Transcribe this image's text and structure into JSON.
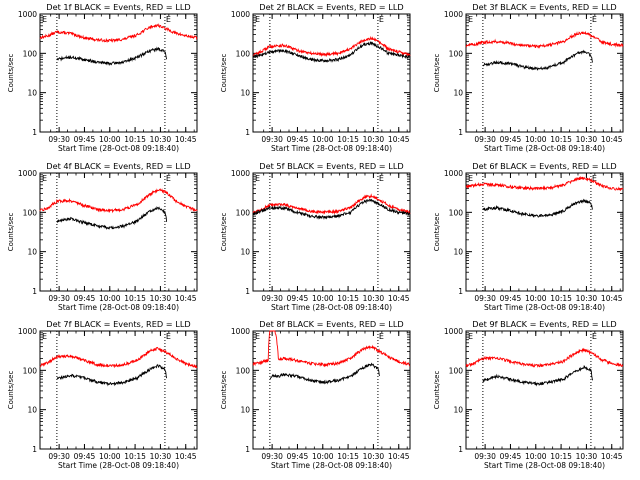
{
  "figure": {
    "x_tick_labels": [
      "09:30",
      "09:45",
      "10:00",
      "10:15",
      "10:30",
      "10:45"
    ],
    "y_tick_labels": [
      "1",
      "10",
      "100",
      "1000"
    ],
    "ylabel": "Counts/sec",
    "xlabel": "Start Time (28-Oct-08 09:18:40)",
    "marker_labels": [
      "E",
      "E"
    ],
    "colors": {
      "events": "#000000",
      "lld": "#ff0000",
      "axes": "#000000",
      "background": "#ffffff"
    }
  },
  "chart_data": [
    {
      "type": "line",
      "title": "Det 1f BLACK = Events, RED = LLD",
      "xlabel": "Start Time (28-Oct-08 09:18:40)",
      "ylabel": "Counts/sec",
      "x_unit": "minutes after 09:18:40",
      "xlim": [
        0,
        93
      ],
      "ylim": [
        1,
        1000
      ],
      "y_scale": "log",
      "marker_lines_x": [
        10,
        74
      ],
      "series": [
        {
          "name": "Events",
          "color": "#000000",
          "x": [
            10,
            18,
            26,
            34,
            42,
            50,
            58,
            66,
            70,
            74,
            75
          ],
          "y": [
            70,
            80,
            70,
            60,
            55,
            60,
            80,
            120,
            130,
            110,
            70
          ]
        },
        {
          "name": "LLD",
          "color": "#ff0000",
          "x": [
            0,
            5,
            10,
            18,
            26,
            34,
            42,
            50,
            58,
            66,
            70,
            74,
            80,
            86,
            93
          ],
          "y": [
            250,
            280,
            350,
            320,
            250,
            220,
            210,
            230,
            300,
            480,
            520,
            430,
            330,
            280,
            250
          ]
        }
      ]
    },
    {
      "type": "line",
      "title": "Det 2f BLACK = Events, RED = LLD",
      "xlabel": "Start Time (28-Oct-08 09:18:40)",
      "ylabel": "Counts/sec",
      "x_unit": "minutes after 09:18:40",
      "xlim": [
        0,
        93
      ],
      "ylim": [
        1,
        1000
      ],
      "y_scale": "log",
      "marker_lines_x": [
        10,
        74
      ],
      "series": [
        {
          "name": "Events",
          "color": "#000000",
          "x": [
            0,
            5,
            10,
            18,
            26,
            34,
            42,
            50,
            58,
            66,
            70,
            74,
            80,
            86,
            93
          ],
          "y": [
            80,
            90,
            110,
            120,
            90,
            70,
            65,
            70,
            90,
            170,
            180,
            150,
            100,
            90,
            80
          ]
        },
        {
          "name": "LLD",
          "color": "#ff0000",
          "x": [
            0,
            5,
            10,
            18,
            26,
            34,
            42,
            50,
            58,
            66,
            70,
            74,
            80,
            86,
            93
          ],
          "y": [
            90,
            110,
            150,
            160,
            120,
            100,
            95,
            100,
            130,
            220,
            240,
            200,
            130,
            110,
            90
          ]
        }
      ]
    },
    {
      "type": "line",
      "title": "Det 3f BLACK = Events, RED = LLD",
      "xlabel": "Start Time (28-Oct-08 09:18:40)",
      "ylabel": "Counts/sec",
      "x_unit": "minutes after 09:18:40",
      "xlim": [
        0,
        93
      ],
      "ylim": [
        1,
        1000
      ],
      "y_scale": "log",
      "marker_lines_x": [
        10,
        74
      ],
      "series": [
        {
          "name": "Events",
          "color": "#000000",
          "x": [
            10,
            18,
            26,
            34,
            42,
            50,
            58,
            66,
            70,
            74,
            75
          ],
          "y": [
            50,
            60,
            55,
            45,
            40,
            45,
            60,
            100,
            110,
            90,
            60
          ]
        },
        {
          "name": "LLD",
          "color": "#ff0000",
          "x": [
            0,
            5,
            10,
            18,
            26,
            34,
            42,
            50,
            58,
            66,
            70,
            74,
            80,
            86,
            93
          ],
          "y": [
            160,
            170,
            190,
            200,
            180,
            160,
            150,
            165,
            200,
            320,
            340,
            280,
            200,
            170,
            160
          ]
        }
      ]
    },
    {
      "type": "line",
      "title": "Det 4f BLACK = Events, RED = LLD",
      "xlabel": "Start Time (28-Oct-08 09:18:40)",
      "ylabel": "Counts/sec",
      "x_unit": "minutes after 09:18:40",
      "xlim": [
        0,
        93
      ],
      "ylim": [
        1,
        1000
      ],
      "y_scale": "log",
      "marker_lines_x": [
        10,
        74
      ],
      "series": [
        {
          "name": "Events",
          "color": "#000000",
          "x": [
            10,
            18,
            26,
            34,
            42,
            50,
            58,
            66,
            70,
            74,
            75
          ],
          "y": [
            60,
            70,
            55,
            45,
            40,
            45,
            60,
            110,
            130,
            100,
            60
          ]
        },
        {
          "name": "LLD",
          "color": "#ff0000",
          "x": [
            0,
            5,
            10,
            18,
            26,
            34,
            42,
            50,
            58,
            66,
            70,
            74,
            80,
            86,
            93
          ],
          "y": [
            110,
            130,
            190,
            200,
            150,
            120,
            110,
            120,
            160,
            300,
            380,
            330,
            200,
            140,
            110
          ]
        }
      ]
    },
    {
      "type": "line",
      "title": "Det 5f BLACK = Events, RED = LLD",
      "xlabel": "Start Time (28-Oct-08 09:18:40)",
      "ylabel": "Counts/sec",
      "x_unit": "minutes after 09:18:40",
      "xlim": [
        0,
        93
      ],
      "ylim": [
        1,
        1000
      ],
      "y_scale": "log",
      "marker_lines_x": [
        10,
        74
      ],
      "series": [
        {
          "name": "Events",
          "color": "#000000",
          "x": [
            0,
            5,
            10,
            18,
            26,
            34,
            42,
            50,
            58,
            66,
            70,
            74,
            80,
            86,
            93
          ],
          "y": [
            90,
            110,
            130,
            130,
            100,
            80,
            75,
            80,
            100,
            190,
            200,
            170,
            120,
            100,
            90
          ]
        },
        {
          "name": "LLD",
          "color": "#ff0000",
          "x": [
            0,
            5,
            10,
            18,
            26,
            34,
            42,
            50,
            58,
            66,
            70,
            74,
            80,
            86,
            93
          ],
          "y": [
            100,
            120,
            150,
            160,
            130,
            105,
            100,
            105,
            130,
            240,
            260,
            220,
            150,
            120,
            100
          ]
        }
      ]
    },
    {
      "type": "line",
      "title": "Det 6f BLACK = Events, RED = LLD",
      "xlabel": "Start Time (28-Oct-08 09:18:40)",
      "ylabel": "Counts/sec",
      "x_unit": "minutes after 09:18:40",
      "xlim": [
        0,
        93
      ],
      "ylim": [
        1,
        1000
      ],
      "y_scale": "log",
      "marker_lines_x": [
        10,
        74
      ],
      "series": [
        {
          "name": "Events",
          "color": "#000000",
          "x": [
            10,
            18,
            26,
            34,
            42,
            50,
            58,
            66,
            70,
            74,
            75
          ],
          "y": [
            120,
            130,
            110,
            90,
            80,
            85,
            110,
            180,
            200,
            170,
            110
          ]
        },
        {
          "name": "LLD",
          "color": "#ff0000",
          "x": [
            0,
            5,
            10,
            18,
            26,
            34,
            42,
            50,
            58,
            66,
            70,
            74,
            80,
            86,
            93
          ],
          "y": [
            450,
            480,
            520,
            500,
            450,
            420,
            400,
            420,
            500,
            700,
            750,
            650,
            480,
            400,
            380
          ]
        }
      ]
    },
    {
      "type": "line",
      "title": "Det 7f BLACK = Events, RED = LLD",
      "xlabel": "Start Time (28-Oct-08 09:18:40)",
      "ylabel": "Counts/sec",
      "x_unit": "minutes after 09:18:40",
      "xlim": [
        0,
        93
      ],
      "ylim": [
        1,
        1000
      ],
      "y_scale": "log",
      "marker_lines_x": [
        10,
        74
      ],
      "series": [
        {
          "name": "Events",
          "color": "#000000",
          "x": [
            10,
            18,
            26,
            34,
            42,
            50,
            58,
            66,
            70,
            74,
            75
          ],
          "y": [
            60,
            75,
            65,
            50,
            45,
            50,
            65,
            110,
            130,
            110,
            60
          ]
        },
        {
          "name": "LLD",
          "color": "#ff0000",
          "x": [
            0,
            5,
            10,
            18,
            26,
            34,
            42,
            50,
            58,
            66,
            70,
            74,
            80,
            86,
            93
          ],
          "y": [
            130,
            160,
            220,
            230,
            180,
            140,
            130,
            140,
            180,
            320,
            360,
            300,
            200,
            150,
            120
          ]
        }
      ]
    },
    {
      "type": "line",
      "title": "Det 8f BLACK = Events, RED = LLD",
      "xlabel": "Start Time (28-Oct-08 09:18:40)",
      "ylabel": "Counts/sec",
      "x_unit": "minutes after 09:18:40",
      "xlim": [
        0,
        93
      ],
      "ylim": [
        1,
        1000
      ],
      "y_scale": "log",
      "marker_lines_x": [
        10,
        74
      ],
      "series": [
        {
          "name": "Events",
          "color": "#000000",
          "x": [
            10,
            11,
            12,
            15,
            18,
            26,
            34,
            42,
            50,
            58,
            66,
            70,
            74,
            75
          ],
          "y": [
            60,
            70,
            75,
            70,
            80,
            70,
            55,
            50,
            55,
            70,
            120,
            140,
            110,
            70
          ]
        },
        {
          "name": "LLD",
          "color": "#ff0000",
          "x": [
            0,
            5,
            9,
            10,
            11,
            12,
            13,
            15,
            18,
            26,
            34,
            42,
            50,
            58,
            66,
            70,
            74,
            80,
            86,
            93
          ],
          "y": [
            150,
            160,
            180,
            1000,
            1000,
            1000,
            1000,
            190,
            200,
            180,
            150,
            140,
            150,
            200,
            360,
            400,
            320,
            220,
            170,
            140
          ]
        }
      ]
    },
    {
      "type": "line",
      "title": "Det 9f BLACK = Events, RED = LLD",
      "xlabel": "Start Time (28-Oct-08 09:18:40)",
      "ylabel": "Counts/sec",
      "x_unit": "minutes after 09:18:40",
      "xlim": [
        0,
        93
      ],
      "ylim": [
        1,
        1000
      ],
      "y_scale": "log",
      "marker_lines_x": [
        10,
        74
      ],
      "series": [
        {
          "name": "Events",
          "color": "#000000",
          "x": [
            10,
            18,
            26,
            34,
            42,
            50,
            58,
            66,
            70,
            74,
            75
          ],
          "y": [
            55,
            70,
            60,
            50,
            45,
            50,
            60,
            100,
            120,
            100,
            55
          ]
        },
        {
          "name": "LLD",
          "color": "#ff0000",
          "x": [
            0,
            5,
            10,
            18,
            26,
            34,
            42,
            50,
            58,
            66,
            70,
            74,
            80,
            86,
            93
          ],
          "y": [
            130,
            150,
            200,
            210,
            170,
            140,
            130,
            140,
            170,
            290,
            330,
            280,
            190,
            150,
            130
          ]
        }
      ]
    }
  ]
}
